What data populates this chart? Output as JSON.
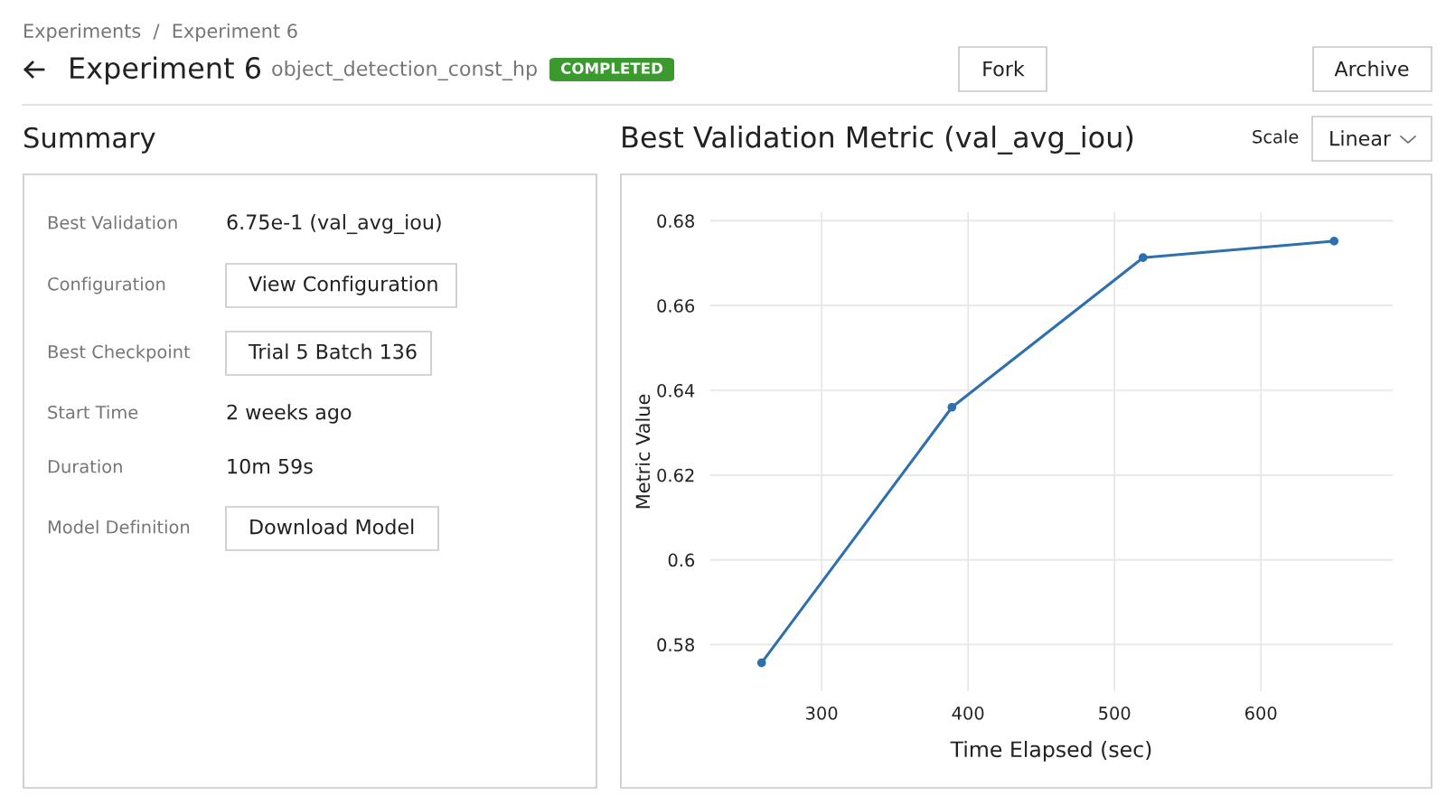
{
  "chart_data": [
    {
      "type": "other",
      "title": "Experiment 6",
      "annotations": [
        "Experiments  /  Experiment 6",
        "object_detection_const_hp",
        "COMPLETED",
        "Fork",
        "Archive",
        "Scale",
        "Linear"
      ]
    },
    {
      "type": "other",
      "title": "Summary",
      "annotations": [
        "Best Validation",
        "6.75e-1 (val_avg_iou)",
        "Configuration",
        "View Configuration",
        "Best Checkpoint",
        "Trial 5 Batch 136",
        "Start Time",
        "2 weeks ago",
        "Duration",
        "10m 59s",
        "Model Definition",
        "Download Model"
      ]
    },
    {
      "type": "line",
      "title": "Best Validation Metric (val_avg_iou)",
      "xlabel": "Time Elapsed (sec)",
      "ylabel": "Metric Value",
      "x": [
        259,
        389,
        519.5,
        650
      ],
      "series": [
        {
          "color": "#2e6fad",
          "values": [
            0.5757,
            0.636,
            0.6713,
            0.6752
          ]
        }
      ],
      "xlim": [
        224,
        690
      ],
      "ylim": [
        0.569,
        0.682
      ],
      "xticks": [
        300,
        400,
        500,
        600
      ],
      "yticks": [
        0.58,
        0.6,
        0.62,
        0.64,
        0.66,
        0.68
      ],
      "grid": true,
      "marker": "circle",
      "line_style": "solid"
    }
  ]
}
